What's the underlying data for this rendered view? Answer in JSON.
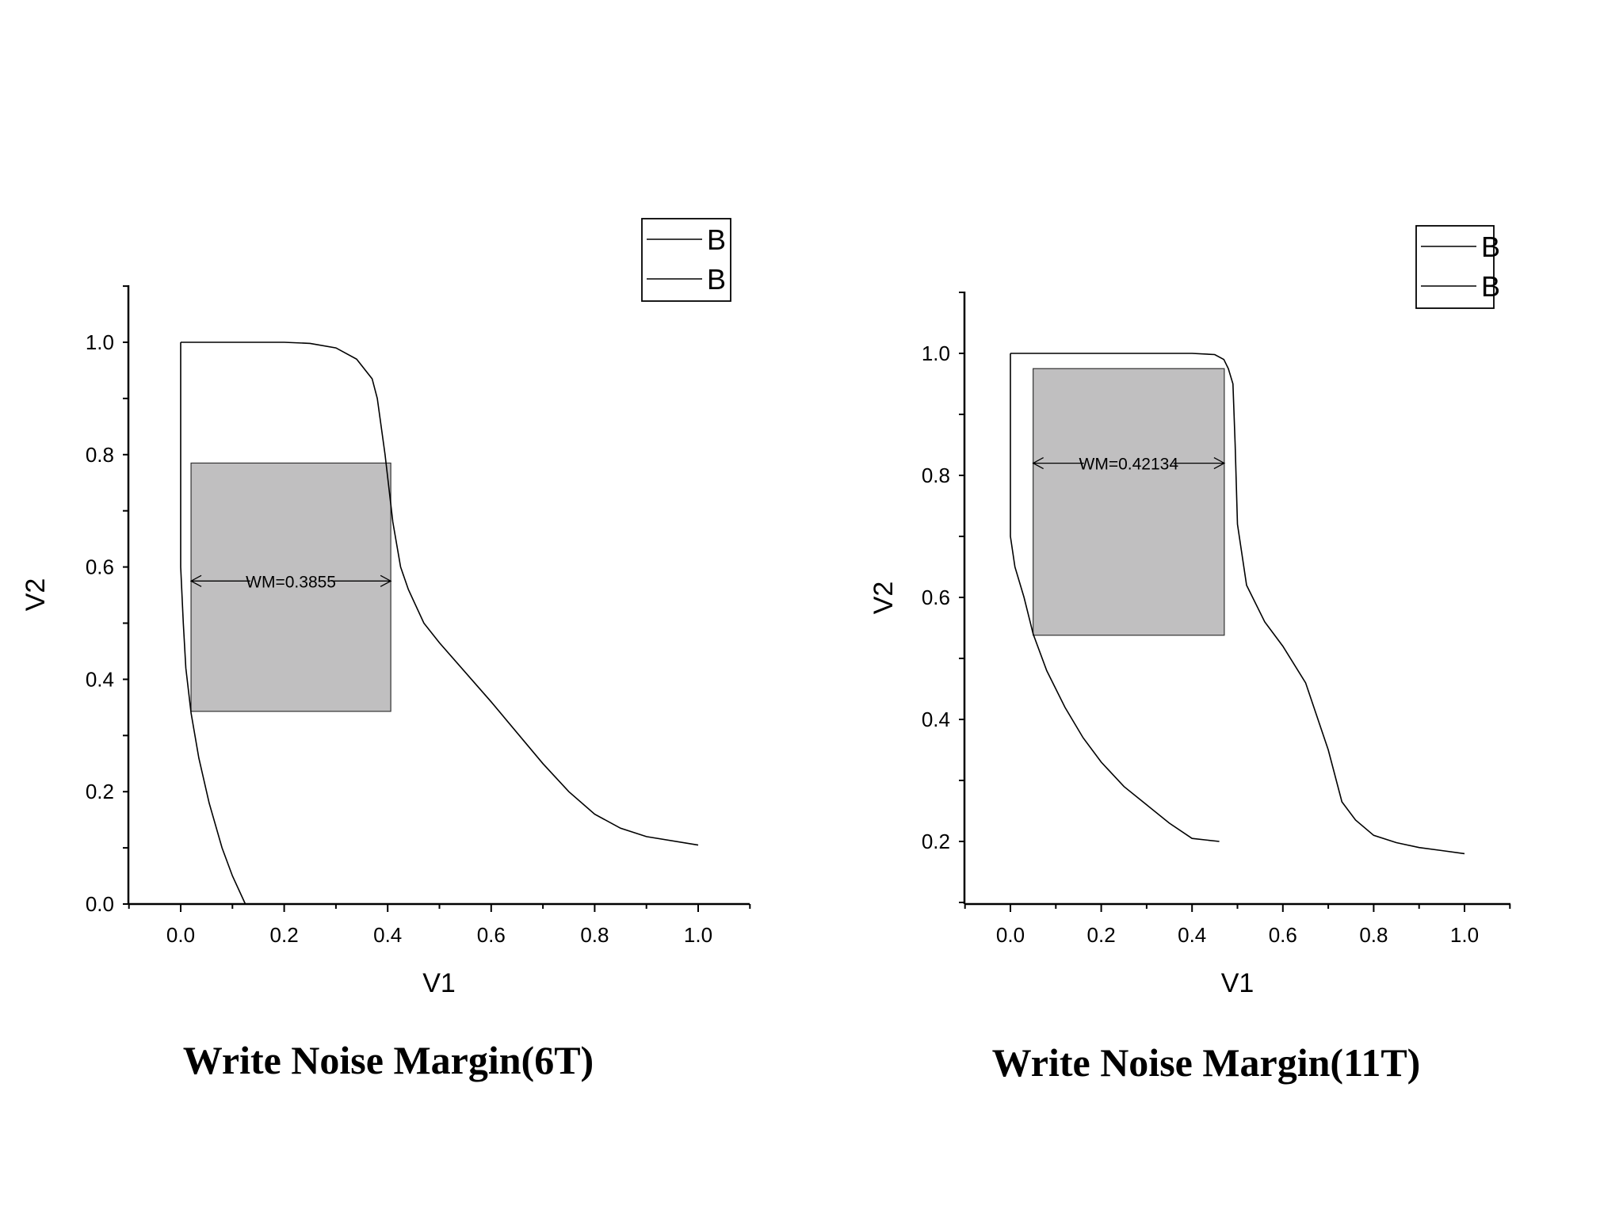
{
  "chart_data": [
    {
      "type": "line",
      "title": "",
      "xlabel": "V1",
      "ylabel": "V2",
      "xlim": [
        -0.1,
        1.1
      ],
      "ylim": [
        0.0,
        1.1
      ],
      "x_ticks": [
        "0.0",
        "0.2",
        "0.4",
        "0.6",
        "0.8",
        "1.0"
      ],
      "y_ticks": [
        "0.0",
        "0.2",
        "0.4",
        "0.6",
        "0.8",
        "1.0"
      ],
      "legend": {
        "position": "top-right",
        "entries": [
          "B",
          "B"
        ]
      },
      "series": [
        {
          "name": "B",
          "x": [
            0.0,
            0.0,
            0.0,
            0.0,
            0.0,
            0.005,
            0.01,
            0.02,
            0.035,
            0.055,
            0.08,
            0.1,
            0.125
          ],
          "y": [
            1.0,
            0.9,
            0.8,
            0.7,
            0.6,
            0.5,
            0.42,
            0.34,
            0.26,
            0.18,
            0.1,
            0.05,
            0.0
          ]
        },
        {
          "name": "B",
          "x": [
            0.0,
            0.1,
            0.2,
            0.25,
            0.3,
            0.34,
            0.37,
            0.38,
            0.395,
            0.41,
            0.425,
            0.44,
            0.47,
            0.5,
            0.6,
            0.7,
            0.75,
            0.8,
            0.85,
            0.9,
            1.0
          ],
          "y": [
            1.0,
            1.0,
            1.0,
            0.998,
            0.99,
            0.97,
            0.935,
            0.9,
            0.8,
            0.68,
            0.6,
            0.56,
            0.5,
            0.465,
            0.36,
            0.25,
            0.2,
            0.16,
            0.135,
            0.12,
            0.105
          ]
        }
      ],
      "annotations": [
        {
          "type": "rect",
          "x0": 0.02,
          "x1": 0.406,
          "y0": 0.343,
          "y1": 0.785,
          "color": "#c0bfc0"
        },
        {
          "type": "arrow",
          "text": "WM=0.3855",
          "x0": 0.02,
          "x1": 0.406,
          "y": 0.575
        }
      ]
    },
    {
      "type": "line",
      "title": "",
      "xlabel": "V1",
      "ylabel": "V2",
      "xlim": [
        -0.1,
        1.1
      ],
      "ylim": [
        0.1,
        1.1
      ],
      "x_ticks": [
        "0.0",
        "0.2",
        "0.4",
        "0.6",
        "0.8",
        "1.0"
      ],
      "y_ticks": [
        "0.2",
        "0.4",
        "0.6",
        "0.8",
        "1.0"
      ],
      "legend": {
        "position": "top-right",
        "entries": [
          "B",
          "B"
        ]
      },
      "series": [
        {
          "name": "B",
          "x": [
            0.0,
            0.0,
            0.0,
            0.0,
            0.01,
            0.03,
            0.05,
            0.08,
            0.12,
            0.16,
            0.2,
            0.25,
            0.3,
            0.35,
            0.4,
            0.46
          ],
          "y": [
            1.0,
            0.9,
            0.8,
            0.7,
            0.65,
            0.6,
            0.54,
            0.48,
            0.42,
            0.37,
            0.33,
            0.29,
            0.26,
            0.23,
            0.205,
            0.2
          ]
        },
        {
          "name": "B",
          "x": [
            0.0,
            0.2,
            0.4,
            0.45,
            0.47,
            0.48,
            0.49,
            0.495,
            0.5,
            0.52,
            0.56,
            0.6,
            0.65,
            0.7,
            0.73,
            0.76,
            0.8,
            0.85,
            0.9,
            0.95,
            1.0
          ],
          "y": [
            1.0,
            1.0,
            1.0,
            0.998,
            0.99,
            0.975,
            0.95,
            0.85,
            0.72,
            0.62,
            0.56,
            0.52,
            0.46,
            0.35,
            0.265,
            0.235,
            0.21,
            0.198,
            0.19,
            0.185,
            0.18
          ]
        }
      ],
      "annotations": [
        {
          "type": "rect",
          "x0": 0.05,
          "x1": 0.471,
          "y0": 0.538,
          "y1": 0.975,
          "color": "#c0bfc0"
        },
        {
          "type": "arrow",
          "text": "WM=0.42134",
          "x0": 0.05,
          "x1": 0.471,
          "y": 0.82
        }
      ]
    }
  ],
  "captions": [
    "Write Noise Margin(6T)",
    "Write Noise Margin(11T)"
  ]
}
